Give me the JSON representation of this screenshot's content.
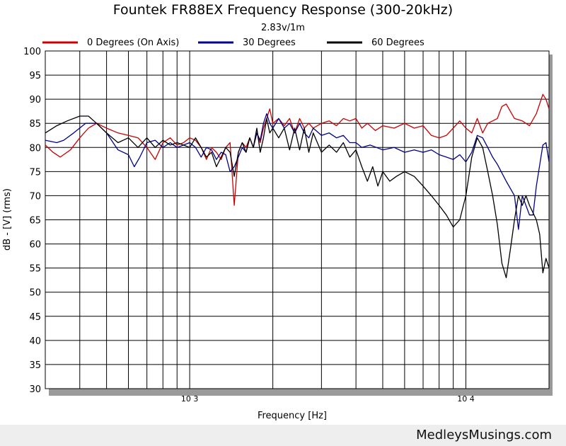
{
  "chart_data": {
    "type": "line",
    "title": "Fountek FR88EX Frequency Response (300-20kHz)",
    "subtitle": "2.83v/1m",
    "xlabel": "Frequency [Hz]",
    "ylabel": "dB - [V]  (rms)",
    "x_scale": "log",
    "xlim": [
      300,
      20000
    ],
    "ylim": [
      30,
      100
    ],
    "x_ticks": [
      {
        "value": 1000,
        "label": "10 3"
      },
      {
        "value": 10000,
        "label": "10 4"
      }
    ],
    "y_ticks": [
      30,
      35,
      40,
      45,
      50,
      55,
      60,
      65,
      70,
      75,
      80,
      85,
      90,
      95,
      100
    ],
    "grid": true,
    "legend_position": "top",
    "series": [
      {
        "name": "0 Degrees (On Axis)",
        "color": "#cc0000",
        "points": [
          [
            300,
            80.5
          ],
          [
            320,
            79
          ],
          [
            340,
            78
          ],
          [
            370,
            79.5
          ],
          [
            400,
            82
          ],
          [
            430,
            84
          ],
          [
            460,
            85
          ],
          [
            500,
            84
          ],
          [
            550,
            83
          ],
          [
            600,
            82.5
          ],
          [
            650,
            82
          ],
          [
            700,
            80
          ],
          [
            750,
            77.5
          ],
          [
            800,
            81
          ],
          [
            850,
            82
          ],
          [
            900,
            80.5
          ],
          [
            950,
            81
          ],
          [
            1000,
            82
          ],
          [
            1050,
            81.5
          ],
          [
            1100,
            80
          ],
          [
            1150,
            77.5
          ],
          [
            1200,
            80
          ],
          [
            1250,
            79
          ],
          [
            1300,
            77.5
          ],
          [
            1350,
            80
          ],
          [
            1400,
            81
          ],
          [
            1450,
            68
          ],
          [
            1500,
            79
          ],
          [
            1550,
            81
          ],
          [
            1600,
            80
          ],
          [
            1650,
            82
          ],
          [
            1700,
            80
          ],
          [
            1750,
            83
          ],
          [
            1800,
            81
          ],
          [
            1850,
            84
          ],
          [
            1900,
            86
          ],
          [
            1950,
            88
          ],
          [
            2000,
            85
          ],
          [
            2100,
            86
          ],
          [
            2200,
            84.5
          ],
          [
            2300,
            86
          ],
          [
            2400,
            83
          ],
          [
            2500,
            86
          ],
          [
            2600,
            84
          ],
          [
            2700,
            85
          ],
          [
            2800,
            84
          ],
          [
            3000,
            85
          ],
          [
            3200,
            85.5
          ],
          [
            3400,
            84.5
          ],
          [
            3600,
            86
          ],
          [
            3800,
            85.5
          ],
          [
            4000,
            86
          ],
          [
            4200,
            84
          ],
          [
            4400,
            85
          ],
          [
            4700,
            83.5
          ],
          [
            5000,
            84.5
          ],
          [
            5500,
            84
          ],
          [
            6000,
            85
          ],
          [
            6500,
            84
          ],
          [
            7000,
            84.5
          ],
          [
            7500,
            82.5
          ],
          [
            8000,
            82
          ],
          [
            8500,
            82.5
          ],
          [
            9000,
            84
          ],
          [
            9500,
            85.5
          ],
          [
            10000,
            84
          ],
          [
            10500,
            83
          ],
          [
            11000,
            86
          ],
          [
            11500,
            83
          ],
          [
            12000,
            85
          ],
          [
            12500,
            85.5
          ],
          [
            13000,
            86
          ],
          [
            13500,
            88.5
          ],
          [
            14000,
            89
          ],
          [
            15000,
            86
          ],
          [
            16000,
            85.5
          ],
          [
            17000,
            84.5
          ],
          [
            18000,
            87
          ],
          [
            19000,
            91
          ],
          [
            19500,
            90
          ],
          [
            20000,
            88
          ]
        ]
      },
      {
        "name": "30 Degrees",
        "color": "#00008b",
        "points": [
          [
            300,
            81.5
          ],
          [
            330,
            81
          ],
          [
            350,
            81.5
          ],
          [
            380,
            83
          ],
          [
            420,
            85
          ],
          [
            460,
            85
          ],
          [
            500,
            83
          ],
          [
            550,
            79.5
          ],
          [
            600,
            78.5
          ],
          [
            630,
            76
          ],
          [
            660,
            78
          ],
          [
            700,
            81
          ],
          [
            750,
            81.5
          ],
          [
            800,
            80
          ],
          [
            850,
            81
          ],
          [
            900,
            80
          ],
          [
            950,
            80.5
          ],
          [
            1000,
            81
          ],
          [
            1050,
            80
          ],
          [
            1100,
            78
          ],
          [
            1150,
            80
          ],
          [
            1200,
            79.5
          ],
          [
            1250,
            77.5
          ],
          [
            1300,
            79
          ],
          [
            1350,
            78.5
          ],
          [
            1400,
            75
          ],
          [
            1450,
            76
          ],
          [
            1500,
            78
          ],
          [
            1550,
            80
          ],
          [
            1600,
            79
          ],
          [
            1650,
            82
          ],
          [
            1700,
            80
          ],
          [
            1750,
            83
          ],
          [
            1800,
            81.5
          ],
          [
            1850,
            85
          ],
          [
            1900,
            87
          ],
          [
            1950,
            85
          ],
          [
            2000,
            84
          ],
          [
            2100,
            86
          ],
          [
            2200,
            84
          ],
          [
            2300,
            85
          ],
          [
            2400,
            83
          ],
          [
            2500,
            85
          ],
          [
            2600,
            83
          ],
          [
            2700,
            82
          ],
          [
            2800,
            84
          ],
          [
            3000,
            82.5
          ],
          [
            3200,
            83
          ],
          [
            3400,
            82
          ],
          [
            3600,
            82.5
          ],
          [
            3800,
            81
          ],
          [
            4000,
            81
          ],
          [
            4200,
            80
          ],
          [
            4500,
            80.5
          ],
          [
            5000,
            79.5
          ],
          [
            5500,
            80
          ],
          [
            6000,
            79
          ],
          [
            6500,
            79.5
          ],
          [
            7000,
            79
          ],
          [
            7500,
            79.5
          ],
          [
            8000,
            78.5
          ],
          [
            8500,
            78
          ],
          [
            9000,
            77.5
          ],
          [
            9500,
            78.5
          ],
          [
            10000,
            77
          ],
          [
            10500,
            79
          ],
          [
            11000,
            82.5
          ],
          [
            11500,
            82
          ],
          [
            12000,
            80
          ],
          [
            12500,
            78
          ],
          [
            13000,
            76.5
          ],
          [
            14000,
            73
          ],
          [
            15000,
            70
          ],
          [
            15500,
            63
          ],
          [
            16000,
            70
          ],
          [
            17000,
            66
          ],
          [
            17500,
            66
          ],
          [
            18000,
            72
          ],
          [
            19000,
            80.5
          ],
          [
            19500,
            81
          ],
          [
            20000,
            77
          ]
        ]
      },
      {
        "name": "60 Degrees",
        "color": "#000000",
        "points": [
          [
            300,
            83
          ],
          [
            330,
            84.5
          ],
          [
            360,
            85.5
          ],
          [
            400,
            86.5
          ],
          [
            430,
            86.5
          ],
          [
            460,
            85
          ],
          [
            500,
            83
          ],
          [
            550,
            81
          ],
          [
            600,
            82
          ],
          [
            650,
            80
          ],
          [
            700,
            82
          ],
          [
            750,
            80
          ],
          [
            800,
            81.5
          ],
          [
            850,
            80.5
          ],
          [
            900,
            81
          ],
          [
            950,
            80.5
          ],
          [
            1000,
            80
          ],
          [
            1050,
            82
          ],
          [
            1100,
            80
          ],
          [
            1150,
            78
          ],
          [
            1200,
            79
          ],
          [
            1250,
            76
          ],
          [
            1300,
            78
          ],
          [
            1350,
            80
          ],
          [
            1400,
            79
          ],
          [
            1450,
            74
          ],
          [
            1500,
            79
          ],
          [
            1550,
            81
          ],
          [
            1600,
            79
          ],
          [
            1650,
            82
          ],
          [
            1700,
            80
          ],
          [
            1750,
            84
          ],
          [
            1800,
            79
          ],
          [
            1850,
            82
          ],
          [
            1900,
            86
          ],
          [
            1950,
            83
          ],
          [
            2000,
            84
          ],
          [
            2100,
            82
          ],
          [
            2200,
            84
          ],
          [
            2300,
            79.5
          ],
          [
            2400,
            84
          ],
          [
            2500,
            79.5
          ],
          [
            2600,
            84
          ],
          [
            2700,
            79
          ],
          [
            2800,
            83
          ],
          [
            3000,
            79
          ],
          [
            3200,
            80.5
          ],
          [
            3400,
            79
          ],
          [
            3600,
            81
          ],
          [
            3800,
            78
          ],
          [
            4000,
            79.5
          ],
          [
            4200,
            76
          ],
          [
            4400,
            73
          ],
          [
            4600,
            76
          ],
          [
            4800,
            72
          ],
          [
            5000,
            75
          ],
          [
            5300,
            73
          ],
          [
            5600,
            74
          ],
          [
            6000,
            75
          ],
          [
            6500,
            74
          ],
          [
            7000,
            72
          ],
          [
            7500,
            70
          ],
          [
            8000,
            68
          ],
          [
            8500,
            66
          ],
          [
            9000,
            63.5
          ],
          [
            9500,
            65
          ],
          [
            10000,
            70
          ],
          [
            10500,
            78
          ],
          [
            11000,
            82
          ],
          [
            11500,
            80
          ],
          [
            12000,
            75
          ],
          [
            12500,
            70
          ],
          [
            13000,
            64
          ],
          [
            13500,
            56
          ],
          [
            14000,
            53
          ],
          [
            14500,
            59
          ],
          [
            15000,
            65
          ],
          [
            15500,
            70
          ],
          [
            16000,
            68
          ],
          [
            16500,
            70
          ],
          [
            17000,
            68
          ],
          [
            18000,
            65
          ],
          [
            18500,
            62
          ],
          [
            19000,
            54
          ],
          [
            19500,
            57
          ],
          [
            20000,
            55
          ]
        ]
      }
    ]
  },
  "footer": {
    "watermark": "MedleysMusings.com"
  }
}
